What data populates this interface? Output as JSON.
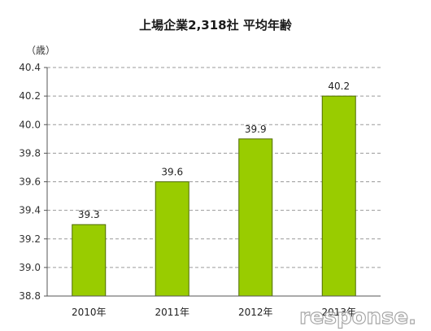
{
  "chart_data": {
    "type": "bar",
    "title": "上場企業2,318社 平均年齢",
    "ylabel": "（歳）",
    "xlabel": "",
    "categories": [
      "2010年",
      "2011年",
      "2012年",
      "2013年"
    ],
    "values": [
      39.3,
      39.6,
      39.9,
      40.2
    ],
    "data_labels": [
      "39.3",
      "39.6",
      "39.9",
      "40.2"
    ],
    "ylim": [
      38.8,
      40.4
    ],
    "yticks": [
      38.8,
      39.0,
      39.2,
      39.4,
      39.6,
      39.8,
      40.0,
      40.2,
      40.4
    ],
    "ytick_labels": [
      "38.8",
      "39.0",
      "39.2",
      "39.4",
      "39.6",
      "39.8",
      "40.0",
      "40.2",
      "40.4"
    ],
    "grid": true,
    "bar_color": "#99cc00",
    "bar_edge_color": "#4f6b00"
  },
  "watermark": "response."
}
